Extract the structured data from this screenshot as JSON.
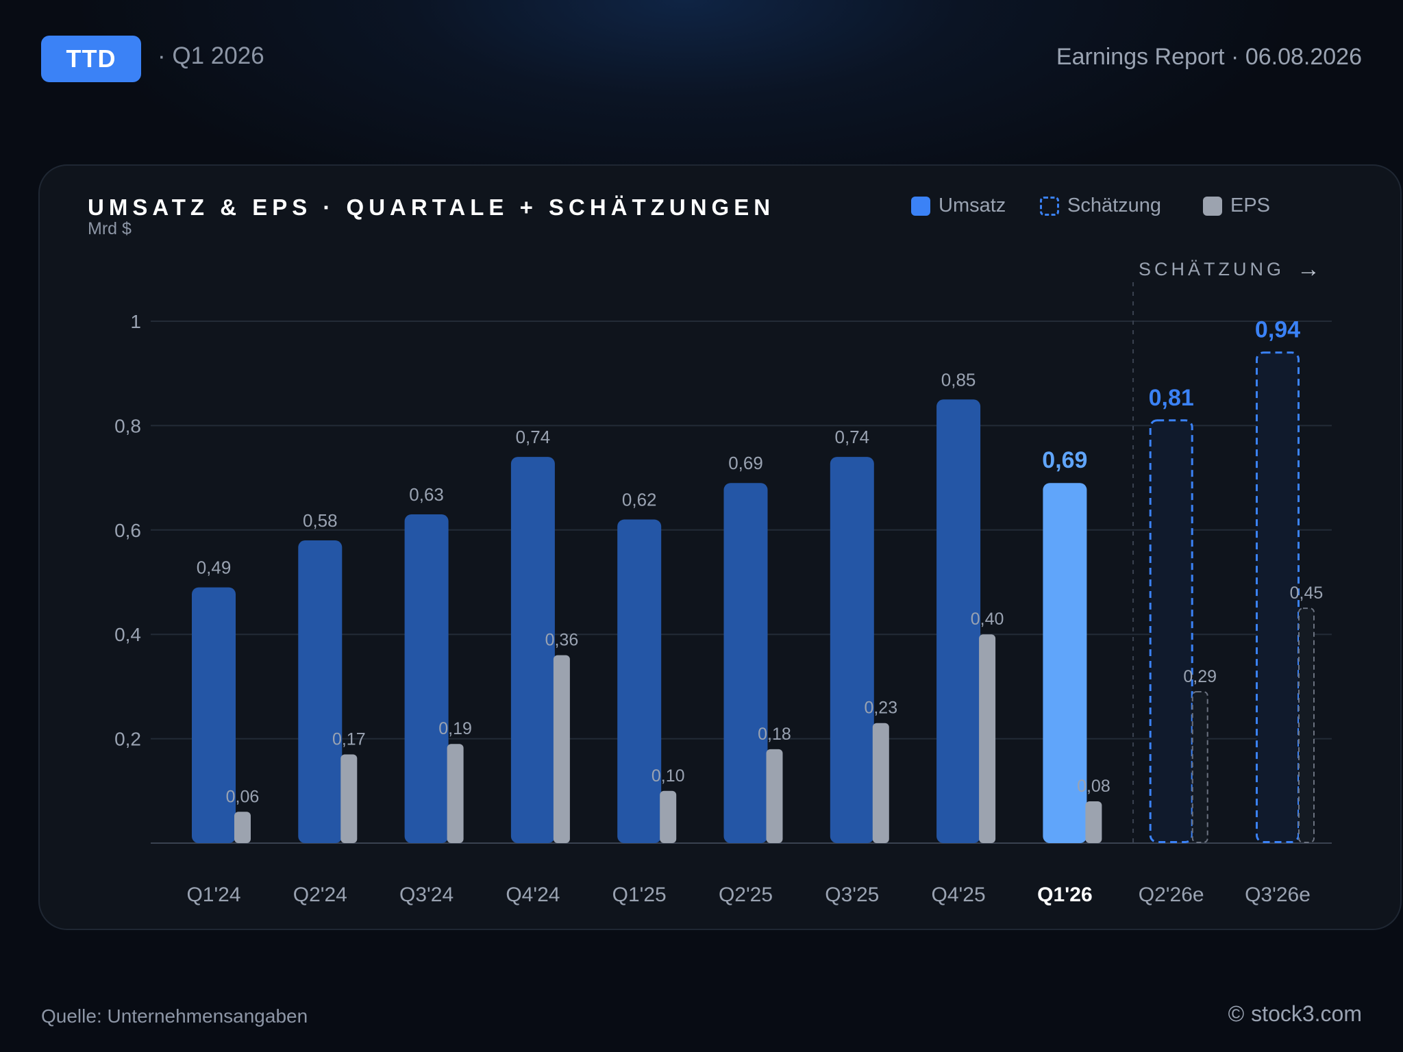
{
  "header": {
    "ticker": "TTD",
    "period": "· Q1 2026",
    "report": "Earnings Report · 06.08.2026"
  },
  "chart_meta": {
    "estimate_marker": "SCHÄTZUNG",
    "estimate_arrow": "→"
  },
  "legend": {
    "revenue": "Umsatz",
    "estimate": "Schätzung",
    "eps": "EPS"
  },
  "footer": {
    "source": "Quelle: Unternehmensangaben",
    "copyright_symbol": "©",
    "brand": "stock3.com"
  },
  "colors": {
    "revenue": "#2456a6",
    "revenue_current": "#60a5fa",
    "estimate_stroke": "#3b82f6",
    "eps": "#9ca3af",
    "eps_estimate_stroke": "#6b7280"
  },
  "chart_data": {
    "type": "bar",
    "title": "UMSATZ & EPS · QUARTALE + SCHÄTZUNGEN",
    "ylabel": "Mrd $",
    "xlabel": "",
    "ylim": [
      0,
      1
    ],
    "yticks": [
      {
        "value": 0.2,
        "label": "0,2"
      },
      {
        "value": 0.4,
        "label": "0,4"
      },
      {
        "value": 0.6,
        "label": "0,6"
      },
      {
        "value": 0.8,
        "label": "0,8"
      },
      {
        "value": 1,
        "label": "1"
      }
    ],
    "grid": true,
    "legend_position": "top-right",
    "categories": [
      "Q1'24",
      "Q2'24",
      "Q3'24",
      "Q4'24",
      "Q1'25",
      "Q2'25",
      "Q3'25",
      "Q4'25",
      "Q1'26",
      "Q2'26e",
      "Q3'26e"
    ],
    "current_index": 8,
    "estimate_start_index": 9,
    "series": [
      {
        "name": "Umsatz",
        "values": [
          0.49,
          0.58,
          0.63,
          0.74,
          0.62,
          0.69,
          0.74,
          0.85,
          0.69,
          0.81,
          0.94
        ],
        "labels": [
          "0,49",
          "0,58",
          "0,63",
          "0,74",
          "0,62",
          "0,69",
          "0,74",
          "0,85",
          "0,69",
          "0,81",
          "0,94"
        ]
      },
      {
        "name": "EPS",
        "values": [
          0.06,
          0.17,
          0.19,
          0.36,
          0.1,
          0.18,
          0.23,
          0.4,
          0.08,
          0.29,
          0.45
        ],
        "labels": [
          "0,06",
          "0,17",
          "0,19",
          "0,36",
          "0,10",
          "0,18",
          "0,23",
          "0,40",
          "0,08",
          "0,29",
          "0,45"
        ]
      }
    ]
  }
}
